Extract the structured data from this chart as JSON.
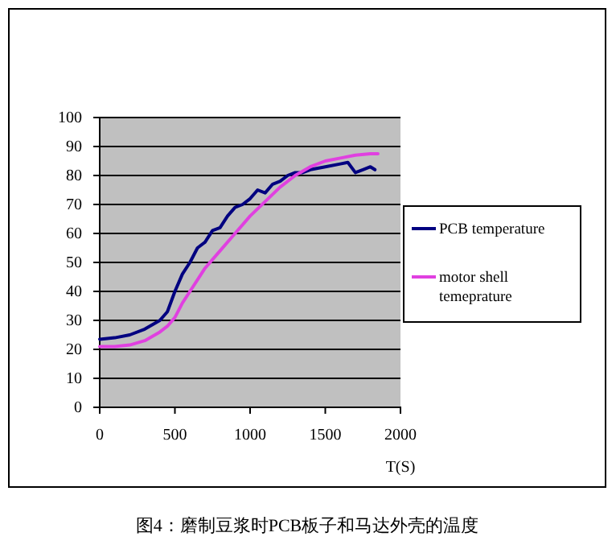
{
  "chart_data": {
    "type": "line",
    "xlabel": "T(S)",
    "xlim": [
      0,
      2000
    ],
    "xticks": [
      0,
      500,
      1000,
      1500,
      2000
    ],
    "ylim": [
      0,
      100
    ],
    "yticks": [
      0,
      10,
      20,
      30,
      40,
      50,
      60,
      70,
      80,
      90,
      100
    ],
    "grid": "y",
    "legend": "right",
    "marker": "none",
    "line_style": "solid",
    "annotations": [
      "图4：磨制豆浆时PCB板子和马达外壳的温度"
    ],
    "series": [
      {
        "name": "PCB temperature",
        "color": "#000080",
        "x": [
          0,
          100,
          200,
          300,
          400,
          450,
          500,
          550,
          600,
          650,
          700,
          750,
          800,
          850,
          900,
          950,
          1000,
          1050,
          1100,
          1150,
          1200,
          1250,
          1300,
          1350,
          1400,
          1500,
          1600,
          1650,
          1700,
          1750,
          1800,
          1830
        ],
        "values": [
          23.5,
          24,
          25,
          27,
          30,
          33,
          40,
          46,
          50,
          55,
          57,
          61,
          62,
          66,
          69,
          70,
          72,
          75,
          74,
          77,
          78,
          80,
          81,
          81,
          82,
          83,
          84,
          84.5,
          81,
          82,
          83,
          82
        ]
      },
      {
        "name": "motor shell temeprature",
        "color": "#e040e0",
        "x": [
          0,
          100,
          200,
          300,
          400,
          450,
          500,
          550,
          600,
          650,
          700,
          800,
          900,
          1000,
          1100,
          1200,
          1300,
          1400,
          1500,
          1600,
          1700,
          1800,
          1850
        ],
        "values": [
          21,
          21,
          21.5,
          23,
          26,
          28,
          31,
          36,
          40,
          44,
          48,
          54,
          60,
          66,
          71,
          76,
          80,
          83,
          85,
          86,
          87,
          87.5,
          87.5
        ]
      }
    ]
  }
}
